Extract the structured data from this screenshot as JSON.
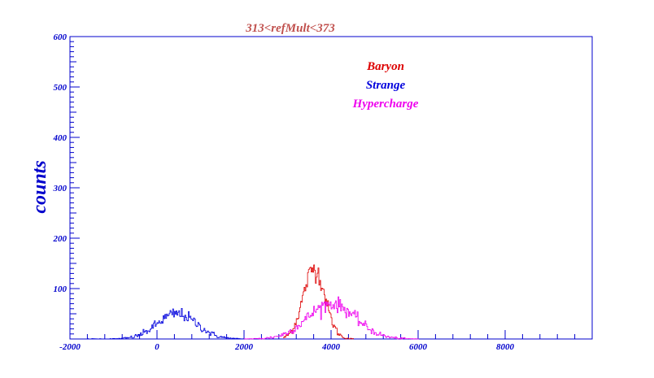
{
  "chart_data": {
    "type": "line",
    "title": "313<refMult<373",
    "xlabel": "",
    "ylabel": "counts",
    "xlim": [
      -2000,
      10000
    ],
    "ylim": [
      0,
      600
    ],
    "x_ticks": [
      -2000,
      0,
      2000,
      4000,
      6000,
      8000
    ],
    "y_ticks": [
      100,
      200,
      300,
      400,
      500,
      600
    ],
    "legend_position": "top-center",
    "grid": false,
    "colors": {
      "frame": "#0000cc",
      "title": "#c0504d"
    },
    "series": [
      {
        "name": "Baryon",
        "color": "#dd0000",
        "shape": "gaussian",
        "mean": 3600,
        "sigma": 250,
        "peak": 140,
        "range": [
          2900,
          4500
        ]
      },
      {
        "name": "Strange",
        "color": "#0000dd",
        "shape": "gaussian",
        "mean": 450,
        "sigma": 450,
        "peak": 50,
        "range": [
          -1600,
          2000
        ]
      },
      {
        "name": "Hypercharge",
        "color": "#ee00ee",
        "shape": "gaussian",
        "mean": 4000,
        "sigma": 550,
        "peak": 70,
        "range": [
          2000,
          6000
        ]
      }
    ]
  }
}
